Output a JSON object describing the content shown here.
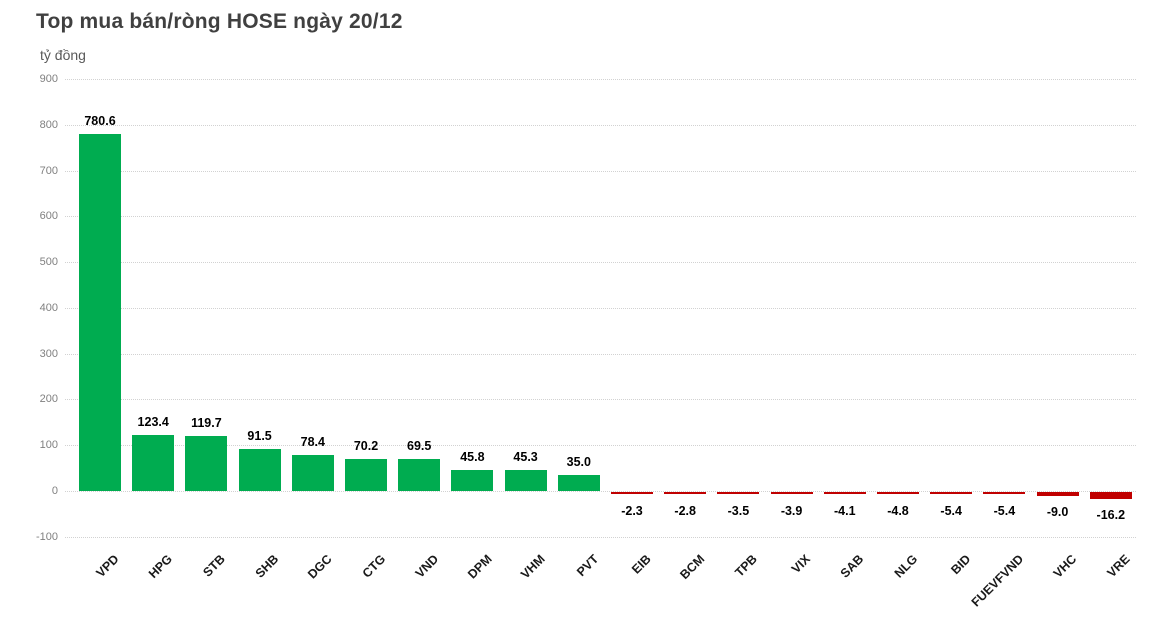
{
  "header": {
    "title": "Top mua bán/ròng HOSE ngày 20/12"
  },
  "chart_data": {
    "type": "bar",
    "title": "Top mua bán/ròng HOSE ngày 20/12",
    "unit_label": "tỷ đồng",
    "xlabel": "",
    "ylabel": "tỷ đồng",
    "categories": [
      "VPD",
      "HPG",
      "STB",
      "SHB",
      "DGC",
      "CTG",
      "VND",
      "DPM",
      "VHM",
      "PVT",
      "EIB",
      "BCM",
      "TPB",
      "VIX",
      "SAB",
      "NLG",
      "BID",
      "FUEVFVND",
      "VHC",
      "VRE"
    ],
    "values": [
      780.6,
      123.4,
      119.7,
      91.5,
      78.4,
      70.2,
      69.5,
      45.8,
      45.3,
      35.0,
      -2.3,
      -2.8,
      -3.5,
      -3.9,
      -4.1,
      -4.8,
      -5.4,
      -5.4,
      -9.0,
      -16.2
    ],
    "yticks": [
      900,
      800,
      700,
      600,
      500,
      400,
      300,
      200,
      100,
      0,
      -100
    ],
    "ylim": [
      -100,
      900
    ],
    "grid": "horizontal-dotted",
    "legend": "none",
    "positive_color": "#00AC50",
    "negative_color": "#C00000",
    "gridline_color": "#D2D2D2",
    "title_color": "#404040",
    "axis_label_color": "#808080"
  }
}
